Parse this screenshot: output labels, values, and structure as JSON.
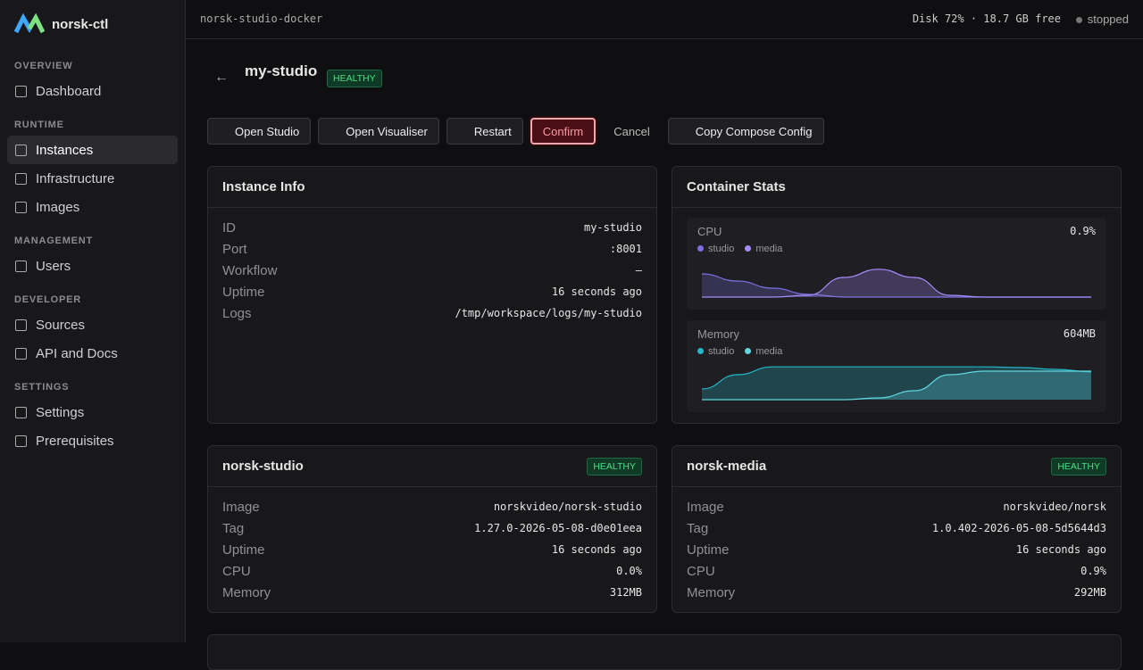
{
  "sidebar": {
    "brand": "norsk-ctl",
    "sections": [
      {
        "title": "OVERVIEW",
        "items": [
          "Dashboard"
        ]
      },
      {
        "title": "RUNTIME",
        "items": [
          "Instances",
          "Infrastructure",
          "Images"
        ]
      },
      {
        "title": "MANAGEMENT",
        "items": [
          "Users"
        ]
      },
      {
        "title": "DEVELOPER",
        "items": [
          "Sources",
          "API and Docs"
        ]
      },
      {
        "title": "SETTINGS",
        "items": [
          "Settings",
          "Prerequisites"
        ]
      }
    ]
  },
  "topbar": {
    "context": "norsk-studio-docker",
    "disk": "Disk 72% · 18.7 GB free",
    "status": "stopped"
  },
  "header": {
    "title": "my-studio",
    "badge": "HEALTHY"
  },
  "actions": [
    "Open Studio",
    "Open Visualiser",
    "Restart",
    "Confirm",
    "Cancel",
    "Copy Compose Config"
  ],
  "instance_info": {
    "title": "Instance Info",
    "rows": [
      [
        "ID",
        "my-studio"
      ],
      [
        "Port",
        ":8001"
      ],
      [
        "Workflow",
        "–"
      ],
      [
        "Uptime",
        "16 seconds ago"
      ],
      [
        "Logs",
        "/tmp/workspace/logs/my-studio"
      ]
    ]
  },
  "container_stats": {
    "title": "Container Stats",
    "charts": [
      {
        "type": "area",
        "label": "CPU",
        "current": "0.9%",
        "ylim": [
          0,
          100
        ],
        "series": [
          {
            "name": "studio",
            "color": "#7c6fe0",
            "values": [
              65,
              45,
              25,
              8,
              0,
              0,
              0,
              0,
              0,
              0,
              0,
              0
            ]
          },
          {
            "name": "media",
            "color": "#a78bfa",
            "values": [
              0,
              0,
              0,
              5,
              55,
              78,
              55,
              5,
              0,
              0,
              0,
              0
            ]
          }
        ]
      },
      {
        "type": "area",
        "label": "Memory",
        "current": "604MB",
        "ylim": [
          0,
          100
        ],
        "series": [
          {
            "name": "studio",
            "color": "#22b8c8",
            "values": [
              30,
              70,
              92,
              92,
              92,
              92,
              92,
              92,
              92,
              90,
              85,
              78
            ]
          },
          {
            "name": "media",
            "color": "#5fd6e0",
            "values": [
              0,
              0,
              0,
              0,
              0,
              5,
              25,
              70,
              80,
              80,
              80,
              80
            ]
          }
        ]
      }
    ]
  },
  "containers": [
    {
      "name": "norsk-studio",
      "badge": "HEALTHY",
      "rows": [
        [
          "Image",
          "norskvideo/norsk-studio"
        ],
        [
          "Tag",
          "1.27.0-2026-05-08-d0e01eea"
        ],
        [
          "Uptime",
          "16 seconds ago"
        ],
        [
          "CPU",
          "0.0%"
        ],
        [
          "Memory",
          "312MB"
        ]
      ]
    },
    {
      "name": "norsk-media",
      "badge": "HEALTHY",
      "rows": [
        [
          "Image",
          "norskvideo/norsk"
        ],
        [
          "Tag",
          "1.0.402-2026-05-08-5d5644d3"
        ],
        [
          "Uptime",
          "16 seconds ago"
        ],
        [
          "CPU",
          "0.9%"
        ],
        [
          "Memory",
          "292MB"
        ]
      ]
    }
  ]
}
